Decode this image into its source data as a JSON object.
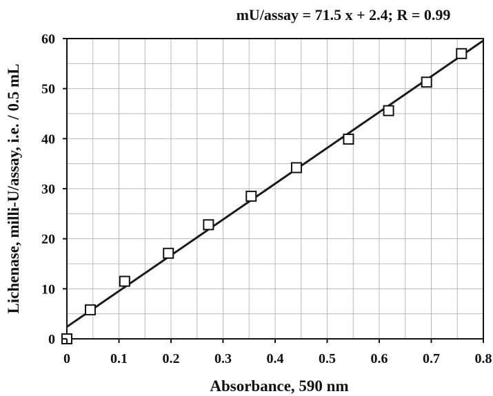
{
  "chart_data": {
    "type": "scatter",
    "equation": "mU/assay = 71.5 x + 2.4; R = 0.99",
    "xlabel": "Absorbance,  590 nm",
    "ylabel": "Lichenase,  milli-U/assay,  i.e. / 0.5 mL",
    "xlim": [
      0,
      0.8
    ],
    "ylim": [
      0,
      60
    ],
    "grid": true,
    "x_ticks": [
      0,
      0.1,
      0.2,
      0.3,
      0.4,
      0.5,
      0.6,
      0.7,
      0.8
    ],
    "x_tick_labels": [
      "0",
      "0.1",
      "0.2",
      "0.3",
      "0.4",
      "0.5",
      "0.6",
      "0.7",
      "0.8"
    ],
    "y_ticks": [
      0,
      10,
      20,
      30,
      40,
      50,
      60
    ],
    "y_tick_labels": [
      "0",
      "10",
      "20",
      "30",
      "40",
      "50",
      "60"
    ],
    "series": [
      {
        "marker": "square-open",
        "x": [
          0.0,
          0.045,
          0.111,
          0.195,
          0.272,
          0.354,
          0.441,
          0.541,
          0.618,
          0.691,
          0.758
        ],
        "y": [
          0.0,
          5.8,
          11.5,
          17.1,
          22.8,
          28.5,
          34.2,
          39.9,
          45.6,
          51.3,
          57.0
        ]
      }
    ],
    "fit_line": {
      "slope": 71.5,
      "intercept": 2.4,
      "x_range": [
        0,
        0.8
      ]
    },
    "colors": {
      "line": "#1a1a1a",
      "grid": "#b8b8b8",
      "axis": "#111111",
      "marker_fill": "#ffffff"
    }
  }
}
